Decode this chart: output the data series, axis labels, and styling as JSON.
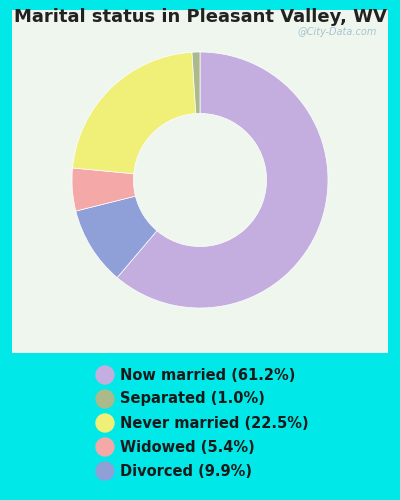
{
  "title": "Marital status in Pleasant Valley, WV",
  "slices": [
    61.2,
    1.0,
    22.5,
    5.4,
    9.9
  ],
  "labels": [
    "Now married (61.2%)",
    "Separated (1.0%)",
    "Never married (22.5%)",
    "Widowed (5.4%)",
    "Divorced (9.9%)"
  ],
  "colors": [
    "#c4aee0",
    "#aaba8a",
    "#f0ef78",
    "#f5a8a8",
    "#8fa0d8"
  ],
  "bg_cyan": "#00e8e8",
  "chart_bg": "#e8f4e8",
  "title_color": "#222222",
  "title_fontsize": 13,
  "legend_fontsize": 10.5,
  "watermark": "@City-Data.com",
  "donut_width": 0.5,
  "startangle": 90,
  "slice_order": [
    "Now married",
    "Divorced",
    "Widowed",
    "Never married",
    "Separated"
  ]
}
